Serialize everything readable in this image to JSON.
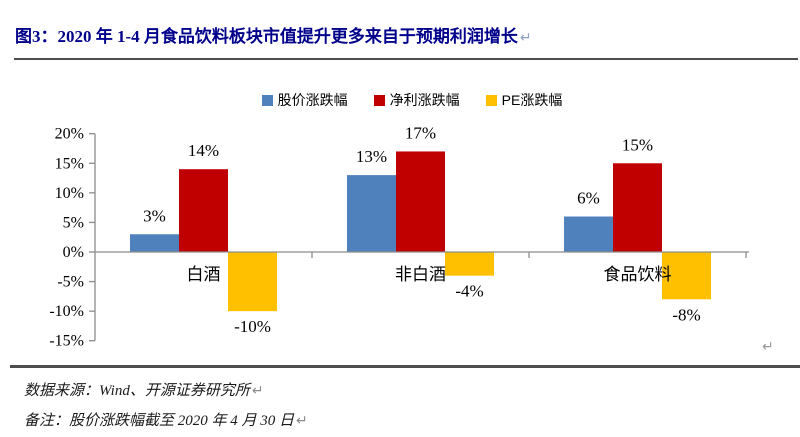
{
  "header": {
    "title": "图3：2020 年 1-4 月食品饮料板块市值提升更多来自于预期利润增长",
    "return_mark": "↵",
    "title_color": "#00008B"
  },
  "chart_data": {
    "type": "bar",
    "title": "图3：2020 年 1-4 月食品饮料板块市值提升更多来自于预期利润增长",
    "categories": [
      "白酒",
      "非白酒",
      "食品饮料"
    ],
    "series": [
      {
        "name": "股价涨跌幅",
        "color": "#4F81BD",
        "values": [
          3,
          13,
          6
        ],
        "labels": [
          "3%",
          "13%",
          "6%"
        ]
      },
      {
        "name": "净利涨跌幅",
        "color": "#C00000",
        "values": [
          14,
          17,
          15
        ],
        "labels": [
          "14%",
          "17%",
          "15%"
        ]
      },
      {
        "name": "PE涨跌幅",
        "color": "#FFC000",
        "values": [
          -10,
          -4,
          -8
        ],
        "labels": [
          "-10%",
          "-4%",
          "-8%"
        ]
      }
    ],
    "y_axis": {
      "ticks": [
        "20%",
        "15%",
        "10%",
        "5%",
        "0%",
        "-5%",
        "-10%",
        "-15%"
      ],
      "min": -15,
      "max": 20,
      "step": 5
    },
    "xlabel": "",
    "ylabel": "",
    "grid": false,
    "legend_position": "top",
    "axis_color": "#8c8c8c",
    "end_mark": "↵"
  },
  "footer": {
    "source": "数据来源：Wind、开源证券研究所",
    "note": "备注：股价涨跌幅截至 2020 年 4 月 30 日",
    "return_mark": "↵"
  }
}
